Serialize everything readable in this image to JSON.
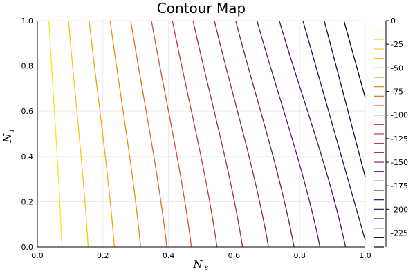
{
  "chart_data": {
    "type": "contour",
    "title": "Contour Map",
    "xlabel": "N_s",
    "ylabel": "N_i",
    "xlabel_main": "N",
    "xlabel_sub": "s",
    "ylabel_main": "N",
    "ylabel_sub": "i",
    "xlim": [
      0,
      1
    ],
    "ylim": [
      0,
      1
    ],
    "xticks": [
      0.0,
      0.2,
      0.4,
      0.6,
      0.8,
      1.0
    ],
    "xtick_labels": [
      "0.0",
      "0.2",
      "0.4",
      "0.6",
      "0.8",
      "1.0"
    ],
    "yticks": [
      0.0,
      0.2,
      0.4,
      0.6,
      0.8,
      1.0
    ],
    "ytick_labels": [
      "0.0",
      "0.2",
      "0.4",
      "0.6",
      "0.8",
      "1.0"
    ],
    "grid": true,
    "colorbar": {
      "range": [
        -240,
        0
      ],
      "ticks": [
        0,
        -25,
        -50,
        -75,
        -100,
        -125,
        -150,
        -175,
        -200,
        -225
      ],
      "tick_labels": [
        "0",
        "-25",
        "-50",
        "-75",
        "-100",
        "-125",
        "-150",
        "-175",
        "-200",
        "-225"
      ],
      "levels": [
        -10,
        -20,
        -30,
        -40,
        -50,
        -60,
        -70,
        -80,
        -90,
        -100,
        -110,
        -120,
        -130,
        -140,
        -150,
        -160,
        -170,
        -180,
        -190,
        -200,
        -210,
        -220,
        -230,
        -240
      ],
      "colormap": "inferno"
    },
    "contour_lines": [
      {
        "level": -15,
        "color": "#f5e61e",
        "top_x": 0.035,
        "bottom_x": 0.075
      },
      {
        "level": -30,
        "color": "#f9c31a",
        "top_x": 0.095,
        "bottom_x": 0.155
      },
      {
        "level": -45,
        "color": "#fba40a",
        "top_x": 0.158,
        "bottom_x": 0.235
      },
      {
        "level": -60,
        "color": "#f4870f",
        "top_x": 0.222,
        "bottom_x": 0.315
      },
      {
        "level": -75,
        "color": "#e8691e",
        "top_x": 0.285,
        "bottom_x": 0.395
      },
      {
        "level": -90,
        "color": "#d45230",
        "top_x": 0.348,
        "bottom_x": 0.47
      },
      {
        "level": -105,
        "color": "#c13a3e",
        "top_x": 0.412,
        "bottom_x": 0.548
      },
      {
        "level": -120,
        "color": "#aa2b4a",
        "top_x": 0.475,
        "bottom_x": 0.626
      },
      {
        "level": -135,
        "color": "#952353",
        "top_x": 0.54,
        "bottom_x": 0.705
      },
      {
        "level": -150,
        "color": "#7d1b5c",
        "top_x": 0.605,
        "bottom_x": 0.783
      },
      {
        "level": -165,
        "color": "#661462",
        "top_x": 0.67,
        "bottom_x": 0.862
      },
      {
        "level": -180,
        "color": "#4c0f66",
        "top_x": 0.738,
        "bottom_x": 0.94
      },
      {
        "level": -195,
        "color": "#2f0b5c",
        "top_x": 0.81,
        "bottom_y": 0.03
      },
      {
        "level": -210,
        "color": "#190a3c",
        "top_x": 0.875,
        "bottom_y": 0.31
      },
      {
        "level": -225,
        "color": "#07051a",
        "top_x": 0.935,
        "bottom_y": 0.66
      }
    ]
  }
}
